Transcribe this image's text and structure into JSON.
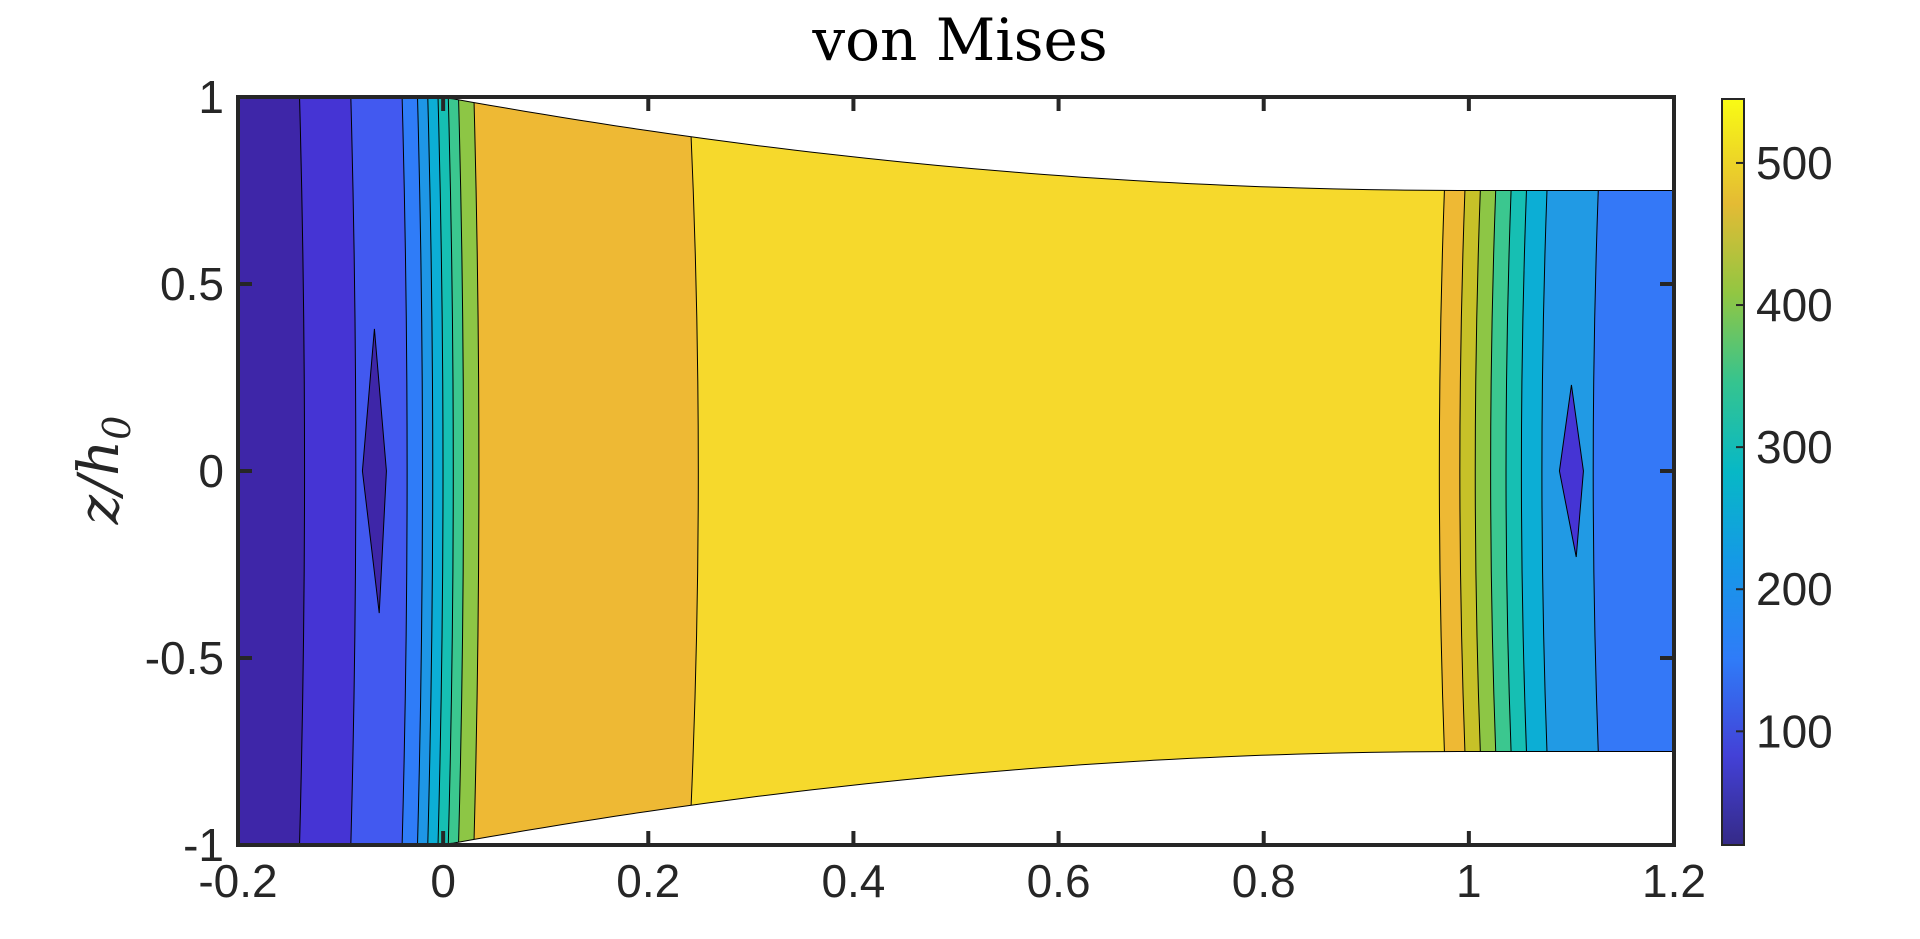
{
  "chart_data": {
    "type": "contour",
    "title": "von Mises",
    "xlabel": "",
    "ylabel": "z/h",
    "ylabel_subscript": "0",
    "xlim": [
      -0.2,
      1.2
    ],
    "ylim": [
      -1,
      1
    ],
    "xticks": [
      "-0.2",
      "0",
      "0.2",
      "0.4",
      "0.6",
      "0.8",
      "1",
      "1.2"
    ],
    "yticks": [
      "-1",
      "-0.5",
      "0",
      "0.5",
      "1"
    ],
    "colorbar": {
      "range": [
        20,
        545
      ],
      "ticks": [
        "100",
        "200",
        "300",
        "400",
        "500"
      ],
      "colormap": "parula"
    },
    "specimen_profile": {
      "left_end_x": -0.2,
      "left_end_half_height": 1.0,
      "taper_start_x": 0,
      "taper_end_x": 1,
      "gauge_half_height": 0.75,
      "right_end_x": 1.2
    },
    "contour_bands": [
      {
        "x": [
          -0.2,
          -0.14
        ],
        "value": 45,
        "color": "#3e26a8"
      },
      {
        "x": [
          -0.14,
          -0.09
        ],
        "value": 90,
        "color": "#4534d4"
      },
      {
        "x": [
          -0.09,
          -0.04
        ],
        "value": 130,
        "color": "#4259f0"
      },
      {
        "x": [
          -0.04,
          -0.025
        ],
        "value": 170,
        "color": "#2f7cf8"
      },
      {
        "x": [
          -0.025,
          -0.015
        ],
        "value": 210,
        "color": "#1e96e6"
      },
      {
        "x": [
          -0.015,
          -0.005
        ],
        "value": 250,
        "color": "#0caed5"
      },
      {
        "x": [
          -0.005,
          0.005
        ],
        "value": 290,
        "color": "#16bfb3"
      },
      {
        "x": [
          0.005,
          0.015
        ],
        "value": 330,
        "color": "#3bc78f"
      },
      {
        "x": [
          0.015,
          0.03
        ],
        "value": 380,
        "color": "#8dc645"
      },
      {
        "x": [
          0.03,
          0.24
        ],
        "value": 480,
        "color": "#eeb934"
      },
      {
        "x": [
          0.24,
          0.98
        ],
        "value": 530,
        "color": "#f6d92c"
      },
      {
        "x": [
          0.98,
          1.0
        ],
        "value": 480,
        "color": "#eeb934"
      },
      {
        "x": [
          1.0,
          1.015
        ],
        "value": 430,
        "color": "#c7c128"
      },
      {
        "x": [
          1.015,
          1.03
        ],
        "value": 380,
        "color": "#8dc645"
      },
      {
        "x": [
          1.03,
          1.045
        ],
        "value": 330,
        "color": "#3bc78f"
      },
      {
        "x": [
          1.045,
          1.06
        ],
        "value": 290,
        "color": "#16bfb3"
      },
      {
        "x": [
          1.06,
          1.08
        ],
        "value": 250,
        "color": "#0caed5"
      },
      {
        "x": [
          1.08,
          1.13
        ],
        "value": 190,
        "color": "#219ae4"
      },
      {
        "x": [
          1.13,
          1.2
        ],
        "value": 150,
        "color": "#3478f7"
      }
    ],
    "islands": [
      {
        "x_center": -0.067,
        "z_half": 0.38,
        "value": 45,
        "color": "#3e26a8"
      },
      {
        "x_center": 1.1,
        "z_half": 0.23,
        "value": 100,
        "color": "#4534d4"
      }
    ]
  }
}
